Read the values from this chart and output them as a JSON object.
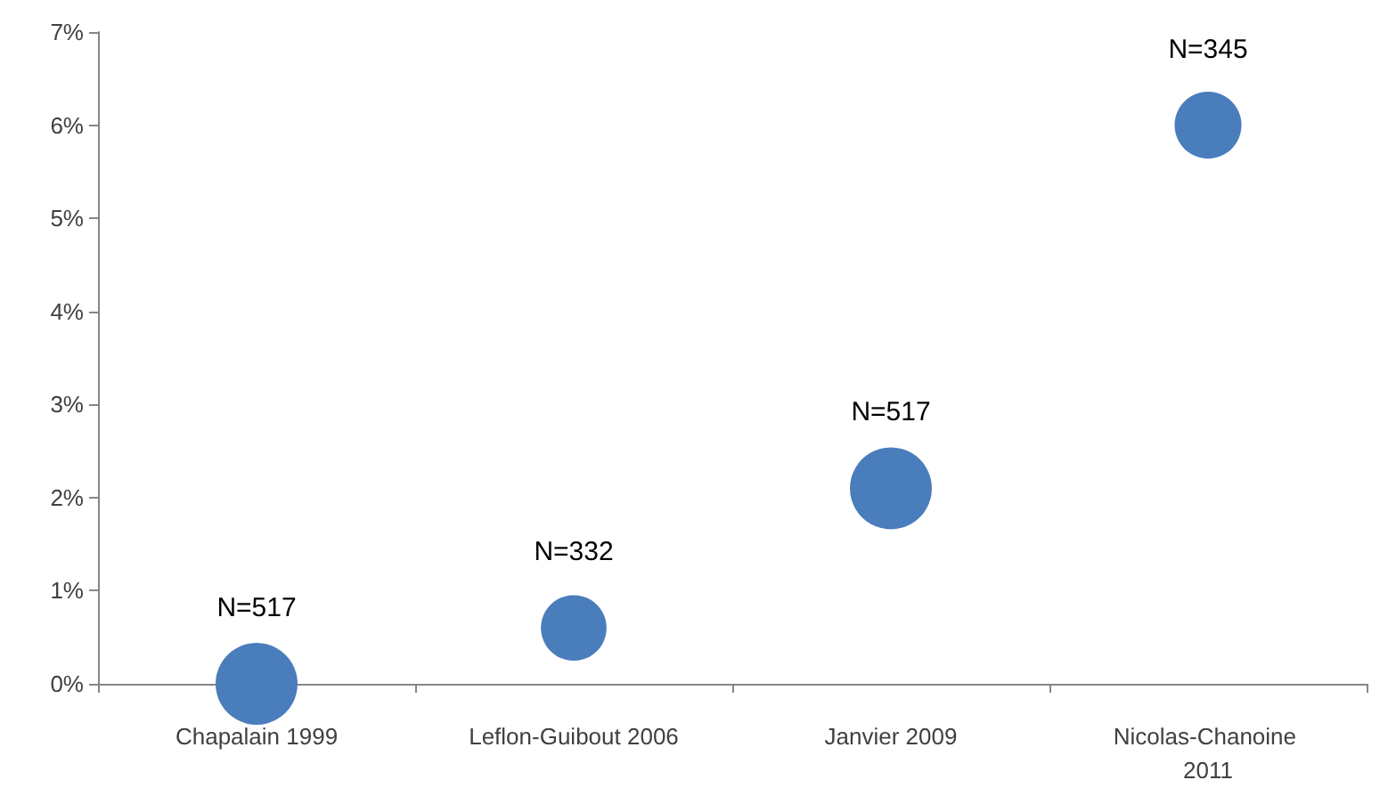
{
  "chart_data": {
    "type": "bubble",
    "categories": [
      "Chapalain 1999",
      "Leflon-Guibout 2006",
      "Janvier 2009",
      "Nicolas-Chanoine 2011"
    ],
    "series": [
      {
        "color": "#4a7dbb",
        "values": [
          0,
          0.6,
          2.1,
          6.0
        ],
        "sizes": [
          1,
          0.642,
          1,
          0.667
        ]
      }
    ],
    "annotations": [
      {
        "text": "N=517",
        "x": "Chapalain 1999",
        "y": 0
      },
      {
        "text": "N=332",
        "x": "Leflon-Guibout 2006",
        "y": 0.6
      },
      {
        "text": "N=517",
        "x": "Janvier 2009",
        "y": 2.1
      },
      {
        "text": "N=345",
        "x": "Nicolas-Chanoine 2011",
        "y": 6.0
      }
    ],
    "ylim": [
      0,
      7
    ],
    "yticks": [
      {
        "value": 0,
        "label": "0%"
      },
      {
        "value": 1,
        "label": "1%"
      },
      {
        "value": 2,
        "label": "2%"
      },
      {
        "value": 3,
        "label": "3%"
      },
      {
        "value": 4,
        "label": "4%"
      },
      {
        "value": 5,
        "label": "5%"
      },
      {
        "value": 6,
        "label": "6%"
      },
      {
        "value": 7,
        "label": "7%"
      }
    ],
    "grid": false
  }
}
